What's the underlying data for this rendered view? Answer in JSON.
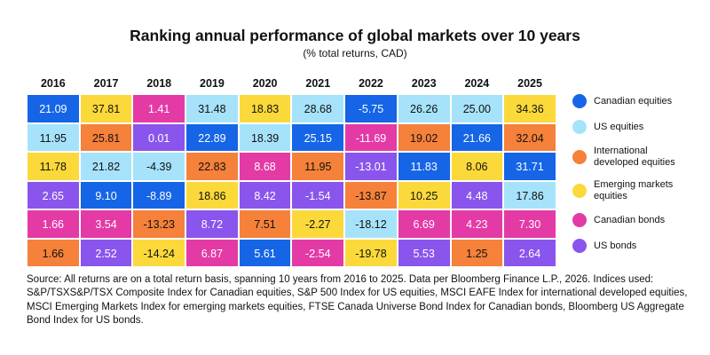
{
  "chart_data": {
    "type": "table",
    "title": "Ranking annual performance of global markets over 10 years",
    "subtitle": "(% total returns, CAD)",
    "years": [
      "2016",
      "2017",
      "2018",
      "2019",
      "2020",
      "2021",
      "2022",
      "2023",
      "2024",
      "2025"
    ],
    "assets": [
      {
        "key": "ca_eq",
        "name": "Canadian equities",
        "color": "#1565e6"
      },
      {
        "key": "us_eq",
        "name": "US equities",
        "color": "#a6e3fb"
      },
      {
        "key": "intl_eq",
        "name": "International developed equities",
        "color": "#f5813a"
      },
      {
        "key": "em_eq",
        "name": "Emerging markets equities",
        "color": "#fbd93a"
      },
      {
        "key": "ca_bd",
        "name": "Canadian bonds",
        "color": "#e43aa6"
      },
      {
        "key": "us_bd",
        "name": "US bonds",
        "color": "#8a55ec"
      }
    ],
    "rows": [
      [
        {
          "v": "21.09",
          "a": "ca_eq"
        },
        {
          "v": "37.81",
          "a": "em_eq"
        },
        {
          "v": "1.41",
          "a": "ca_bd"
        },
        {
          "v": "31.48",
          "a": "us_eq"
        },
        {
          "v": "18.83",
          "a": "em_eq"
        },
        {
          "v": "28.68",
          "a": "us_eq"
        },
        {
          "v": "-5.75",
          "a": "ca_eq"
        },
        {
          "v": "26.26",
          "a": "us_eq"
        },
        {
          "v": "25.00",
          "a": "us_eq"
        },
        {
          "v": "34.36",
          "a": "em_eq"
        }
      ],
      [
        {
          "v": "11.95",
          "a": "us_eq"
        },
        {
          "v": "25.81",
          "a": "intl_eq"
        },
        {
          "v": "0.01",
          "a": "us_bd"
        },
        {
          "v": "22.89",
          "a": "ca_eq"
        },
        {
          "v": "18.39",
          "a": "us_eq"
        },
        {
          "v": "25.15",
          "a": "ca_eq"
        },
        {
          "v": "-11.69",
          "a": "ca_bd"
        },
        {
          "v": "19.02",
          "a": "intl_eq"
        },
        {
          "v": "21.66",
          "a": "ca_eq"
        },
        {
          "v": "32.04",
          "a": "intl_eq"
        }
      ],
      [
        {
          "v": "11.78",
          "a": "em_eq"
        },
        {
          "v": "21.82",
          "a": "us_eq"
        },
        {
          "v": "-4.39",
          "a": "us_eq"
        },
        {
          "v": "22.83",
          "a": "intl_eq"
        },
        {
          "v": "8.68",
          "a": "ca_bd"
        },
        {
          "v": "11.95",
          "a": "intl_eq"
        },
        {
          "v": "-13.01",
          "a": "us_bd"
        },
        {
          "v": "11.83",
          "a": "ca_eq"
        },
        {
          "v": "8.06",
          "a": "em_eq"
        },
        {
          "v": "31.71",
          "a": "ca_eq"
        }
      ],
      [
        {
          "v": "2.65",
          "a": "us_bd"
        },
        {
          "v": "9.10",
          "a": "ca_eq"
        },
        {
          "v": "-8.89",
          "a": "ca_eq"
        },
        {
          "v": "18.86",
          "a": "em_eq"
        },
        {
          "v": "8.42",
          "a": "us_bd"
        },
        {
          "v": "-1.54",
          "a": "us_bd"
        },
        {
          "v": "-13.87",
          "a": "intl_eq"
        },
        {
          "v": "10.25",
          "a": "em_eq"
        },
        {
          "v": "4.48",
          "a": "us_bd"
        },
        {
          "v": "17.86",
          "a": "us_eq"
        }
      ],
      [
        {
          "v": "1.66",
          "a": "ca_bd"
        },
        {
          "v": "3.54",
          "a": "ca_bd"
        },
        {
          "v": "-13.23",
          "a": "intl_eq"
        },
        {
          "v": "8.72",
          "a": "us_bd"
        },
        {
          "v": "7.51",
          "a": "intl_eq"
        },
        {
          "v": "-2.27",
          "a": "em_eq"
        },
        {
          "v": "-18.12",
          "a": "us_eq"
        },
        {
          "v": "6.69",
          "a": "ca_bd"
        },
        {
          "v": "4.23",
          "a": "ca_bd"
        },
        {
          "v": "7.30",
          "a": "ca_bd"
        }
      ],
      [
        {
          "v": "1.66",
          "a": "intl_eq"
        },
        {
          "v": "2.52",
          "a": "us_bd"
        },
        {
          "v": "-14.24",
          "a": "em_eq"
        },
        {
          "v": "6.87",
          "a": "ca_bd"
        },
        {
          "v": "5.61",
          "a": "ca_eq"
        },
        {
          "v": "-2.54",
          "a": "ca_bd"
        },
        {
          "v": "-19.78",
          "a": "em_eq"
        },
        {
          "v": "5.53",
          "a": "us_bd"
        },
        {
          "v": "1.25",
          "a": "intl_eq"
        },
        {
          "v": "2.64",
          "a": "us_bd"
        }
      ]
    ]
  },
  "legend_labels": [
    [
      "Canadian equities"
    ],
    [
      "US equities"
    ],
    [
      "International",
      "developed equities"
    ],
    [
      "Emerging markets",
      "equities"
    ],
    [
      "Canadian bonds"
    ],
    [
      "US bonds"
    ]
  ],
  "source_note": "Source: All returns are on a total return basis, spanning 10 years from 2016 to 2025. Data per Bloomberg Finance L.P., 2026. Indices used: S&P/TSXS&P/TSX Composite Index for Canadian equities, S&P 500 Index for US equities, MSCI EAFE Index for international developed equities, MSCI Emerging Markets Index for emerging markets equities, FTSE Canada Universe Bond Index for Canadian bonds, Bloomberg US Aggregate Bond Index for US bonds."
}
